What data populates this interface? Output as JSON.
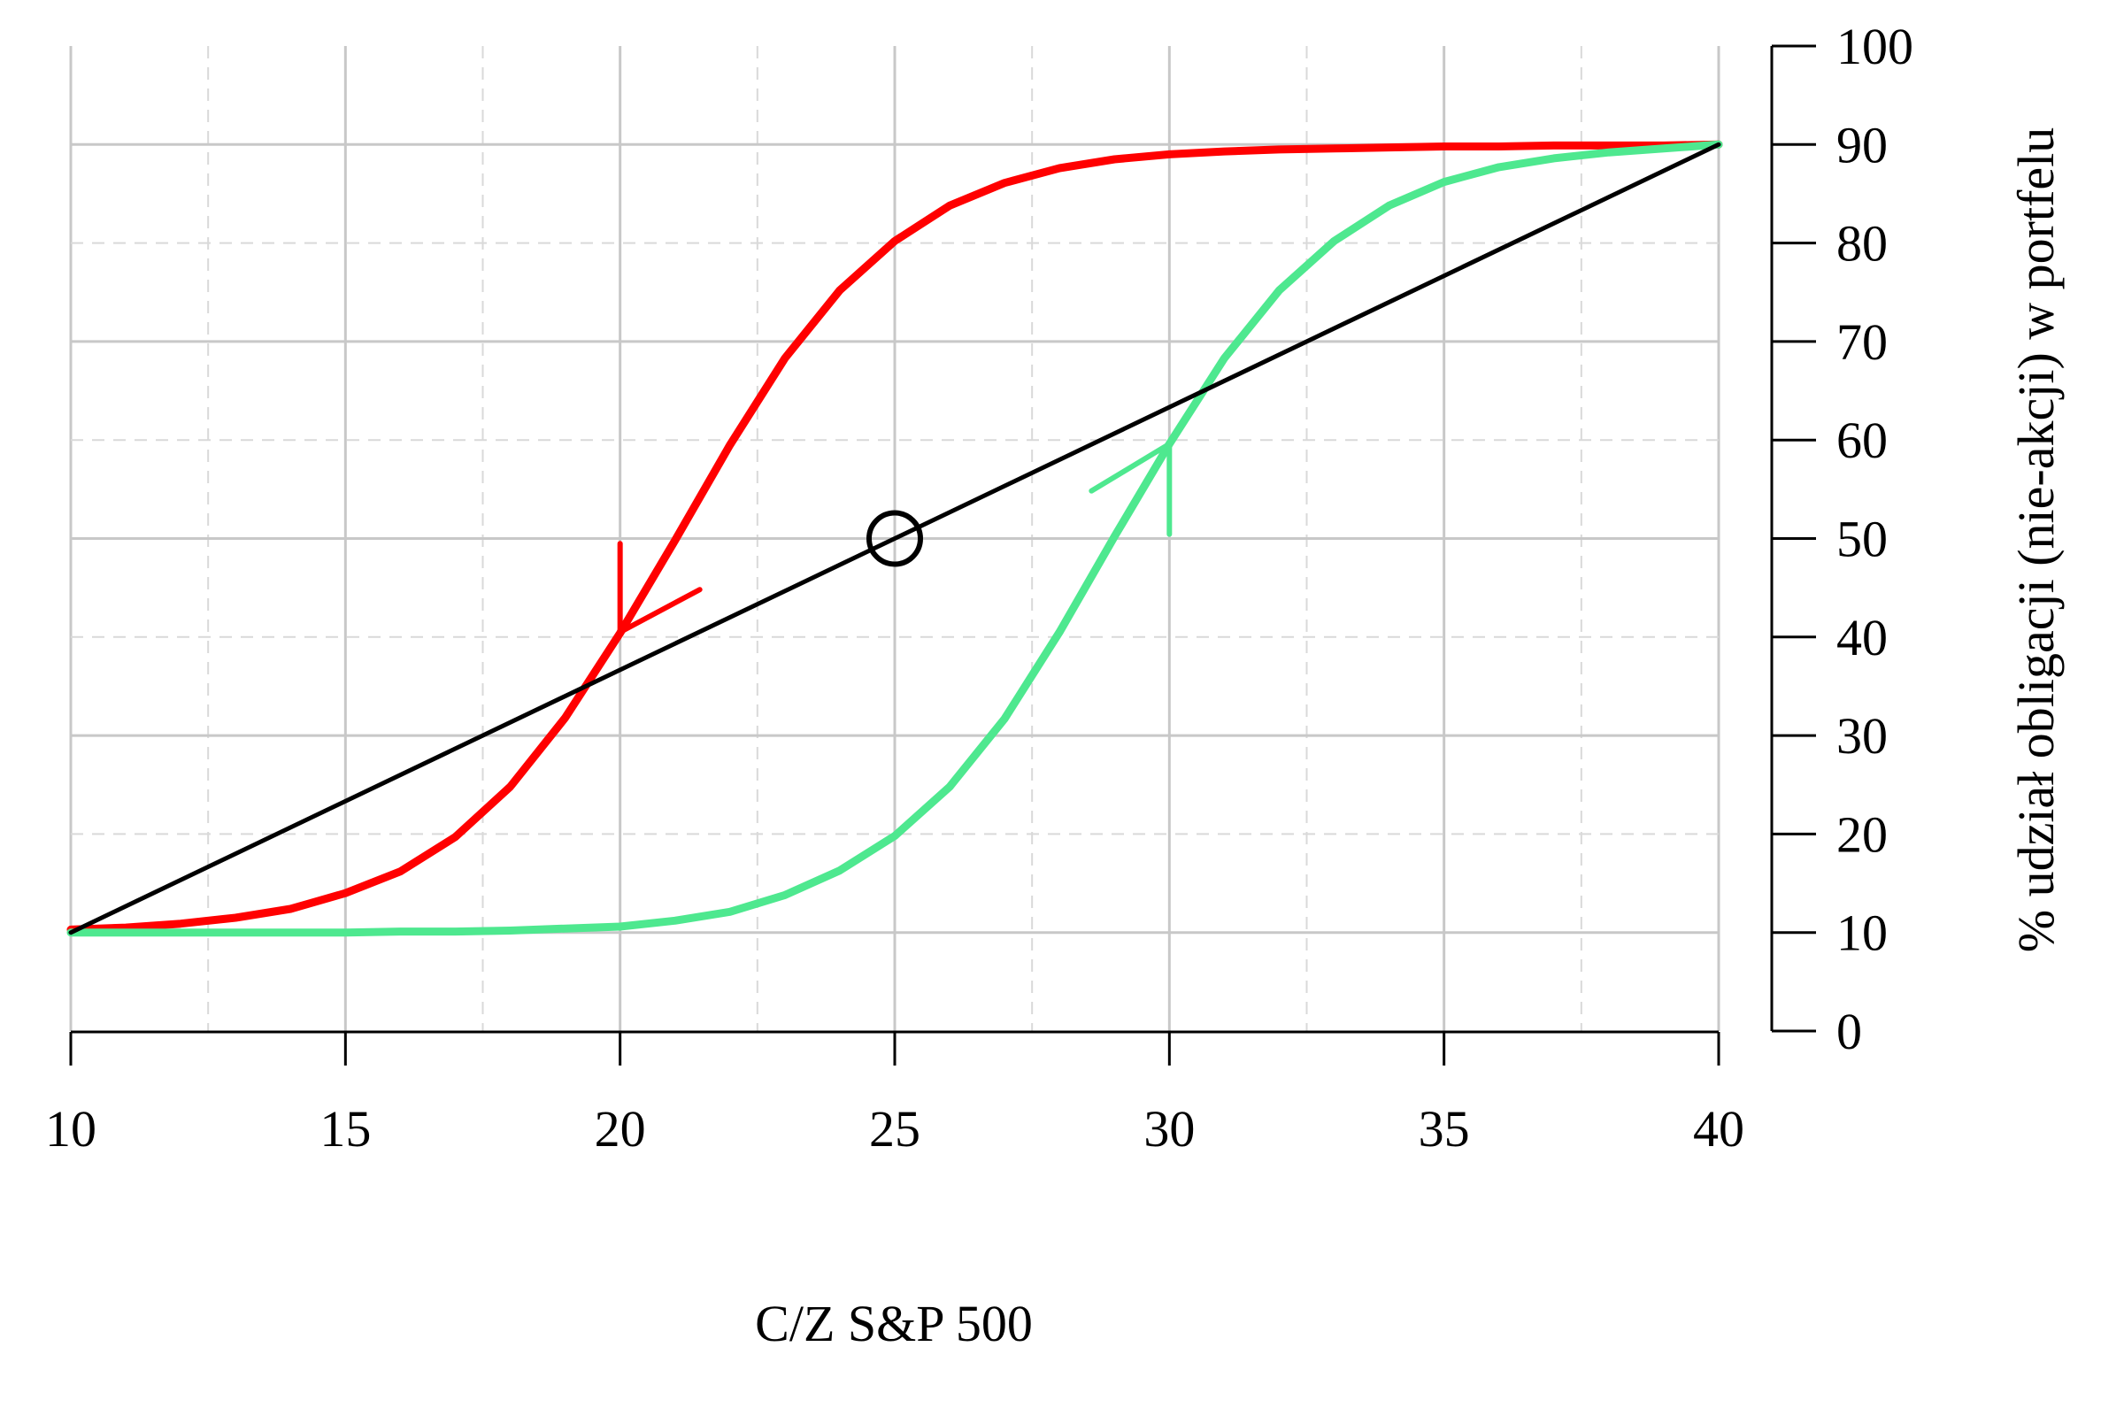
{
  "chart_data": {
    "type": "line",
    "xlabel": "C/Z S&P 500",
    "ylabel": "% udział obligacji (nie-akcji) w portfelu",
    "xlim": [
      10,
      40
    ],
    "ylim": [
      0,
      100
    ],
    "x_ticks": [
      10,
      15,
      20,
      25,
      30,
      35,
      40
    ],
    "y_ticks": [
      0,
      10,
      20,
      30,
      40,
      50,
      60,
      70,
      80,
      90,
      100
    ],
    "y_axis_position": "right",
    "grid": true,
    "series": [
      {
        "color": "#ff0000",
        "x": [
          10,
          11,
          12,
          13,
          14,
          15,
          16,
          17,
          18,
          19,
          20,
          21,
          22,
          23,
          24,
          25,
          26,
          27,
          28,
          29,
          30,
          31,
          32,
          33,
          34,
          35,
          36,
          37,
          38,
          39,
          40
        ],
        "y": [
          10.3,
          10.5,
          10.9,
          11.5,
          12.4,
          14.0,
          16.2,
          19.7,
          24.8,
          31.8,
          40.4,
          49.8,
          59.5,
          68.3,
          75.2,
          80.2,
          83.8,
          86.1,
          87.6,
          88.5,
          89.0,
          89.3,
          89.5,
          89.6,
          89.7,
          89.8,
          89.8,
          89.9,
          89.9,
          89.9,
          90.0
        ]
      },
      {
        "color": "#4ee88f",
        "x": [
          10,
          11,
          12,
          13,
          14,
          15,
          16,
          17,
          18,
          19,
          20,
          21,
          22,
          23,
          24,
          25,
          26,
          27,
          28,
          29,
          30,
          31,
          32,
          33,
          34,
          35,
          36,
          37,
          38,
          39,
          40
        ],
        "y": [
          10.0,
          10.0,
          10.0,
          10.0,
          10.0,
          10.0,
          10.1,
          10.1,
          10.2,
          10.4,
          10.6,
          11.2,
          12.1,
          13.8,
          16.3,
          19.8,
          24.8,
          31.7,
          40.5,
          50.2,
          59.6,
          68.3,
          75.2,
          80.2,
          83.8,
          86.2,
          87.7,
          88.6,
          89.2,
          89.6,
          90.0
        ]
      },
      {
        "color": "#000000",
        "x": [
          10,
          40
        ],
        "y": [
          10,
          90
        ]
      }
    ],
    "annotations": [
      {
        "type": "circle",
        "x": 25,
        "y": 50,
        "color": "#000000"
      },
      {
        "type": "arrow",
        "x": 20,
        "y": 40.5,
        "direction": "down",
        "color": "#ff0000"
      },
      {
        "type": "arrow",
        "x": 30,
        "y": 59.6,
        "direction": "up",
        "color": "#4ee88f"
      }
    ]
  }
}
